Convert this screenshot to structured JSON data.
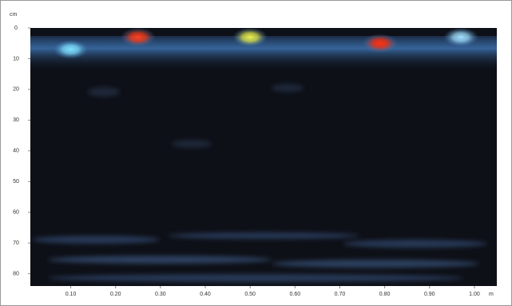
{
  "chart_data": {
    "type": "heatmap",
    "x_unit": "m",
    "y_unit": "cm",
    "xlim": [
      0.01,
      1.05
    ],
    "xticks": [
      {
        "value": 0.1,
        "label": "0.10"
      },
      {
        "value": 0.2,
        "label": "0.20"
      },
      {
        "value": 0.3,
        "label": "0.30"
      },
      {
        "value": 0.4,
        "label": "0.40"
      },
      {
        "value": 0.5,
        "label": "0.50"
      },
      {
        "value": 0.6,
        "label": "0.60"
      },
      {
        "value": 0.7,
        "label": "0.70"
      },
      {
        "value": 0.8,
        "label": "0.80"
      },
      {
        "value": 0.9,
        "label": "0.90"
      },
      {
        "value": 1.0,
        "label": "1.00"
      }
    ],
    "ylim": [
      0,
      84
    ],
    "y_reversed": true,
    "yticks": [
      0,
      10,
      20,
      30,
      40,
      50,
      60,
      70,
      80
    ],
    "x": [
      0.1,
      0.25,
      0.5,
      0.79,
      0.97
    ],
    "values": [
      7,
      3,
      3,
      5,
      3
    ],
    "colors": [
      "#7fe0ff",
      "#ff4020",
      "#e8f050",
      "#ff3010",
      "#a0e0ff"
    ]
  }
}
